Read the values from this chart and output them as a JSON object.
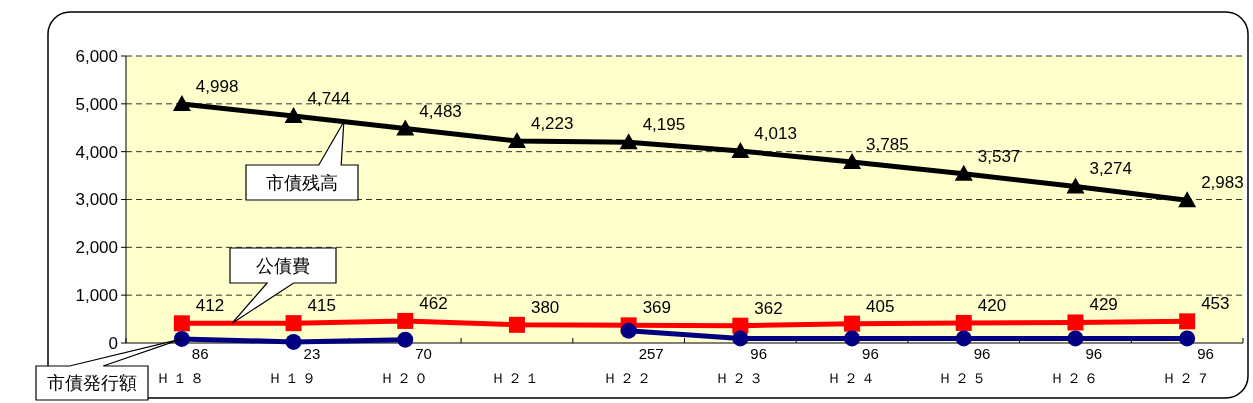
{
  "chart_data": {
    "type": "line",
    "categories": [
      "Ｈ１８",
      "Ｈ１９",
      "Ｈ２０",
      "Ｈ２１",
      "Ｈ２２",
      "Ｈ２３",
      "Ｈ２４",
      "Ｈ２５",
      "Ｈ２６",
      "Ｈ２７"
    ],
    "series": [
      {
        "name": "市債残高",
        "color": "#000000",
        "marker": "triangle",
        "values": [
          4998,
          4744,
          4483,
          4223,
          4195,
          4013,
          3785,
          3537,
          3274,
          2983
        ],
        "value_labels": [
          "4,998",
          "4,744",
          "4,483",
          "4,223",
          "4,195",
          "4,013",
          "3,785",
          "3,537",
          "3,274",
          "2,983"
        ]
      },
      {
        "name": "公債費",
        "color": "#ff0000",
        "marker": "square",
        "values": [
          412,
          415,
          462,
          380,
          369,
          362,
          405,
          420,
          429,
          453
        ],
        "value_labels": [
          "412",
          "415",
          "462",
          "380",
          "369",
          "362",
          "405",
          "420",
          "429",
          "453"
        ]
      },
      {
        "name": "市債発行額",
        "color": "#000080",
        "marker": "circle",
        "values": [
          86,
          23,
          70,
          null,
          257,
          96,
          96,
          96,
          96,
          96
        ],
        "value_labels": [
          "86",
          "23",
          "70",
          null,
          "257",
          "96",
          "96",
          "96",
          "96",
          "96"
        ]
      }
    ],
    "ylim": [
      0,
      6000
    ],
    "yticks": [
      {
        "value": 0,
        "label": "0"
      },
      {
        "value": 1000,
        "label": "1,000"
      },
      {
        "value": 2000,
        "label": "2,000"
      },
      {
        "value": 3000,
        "label": "3,000"
      },
      {
        "value": 4000,
        "label": "4,000"
      },
      {
        "value": 5000,
        "label": "5,000"
      },
      {
        "value": 6000,
        "label": "6,000"
      }
    ],
    "grid": "y",
    "legend": false,
    "line_style": "solid"
  }
}
